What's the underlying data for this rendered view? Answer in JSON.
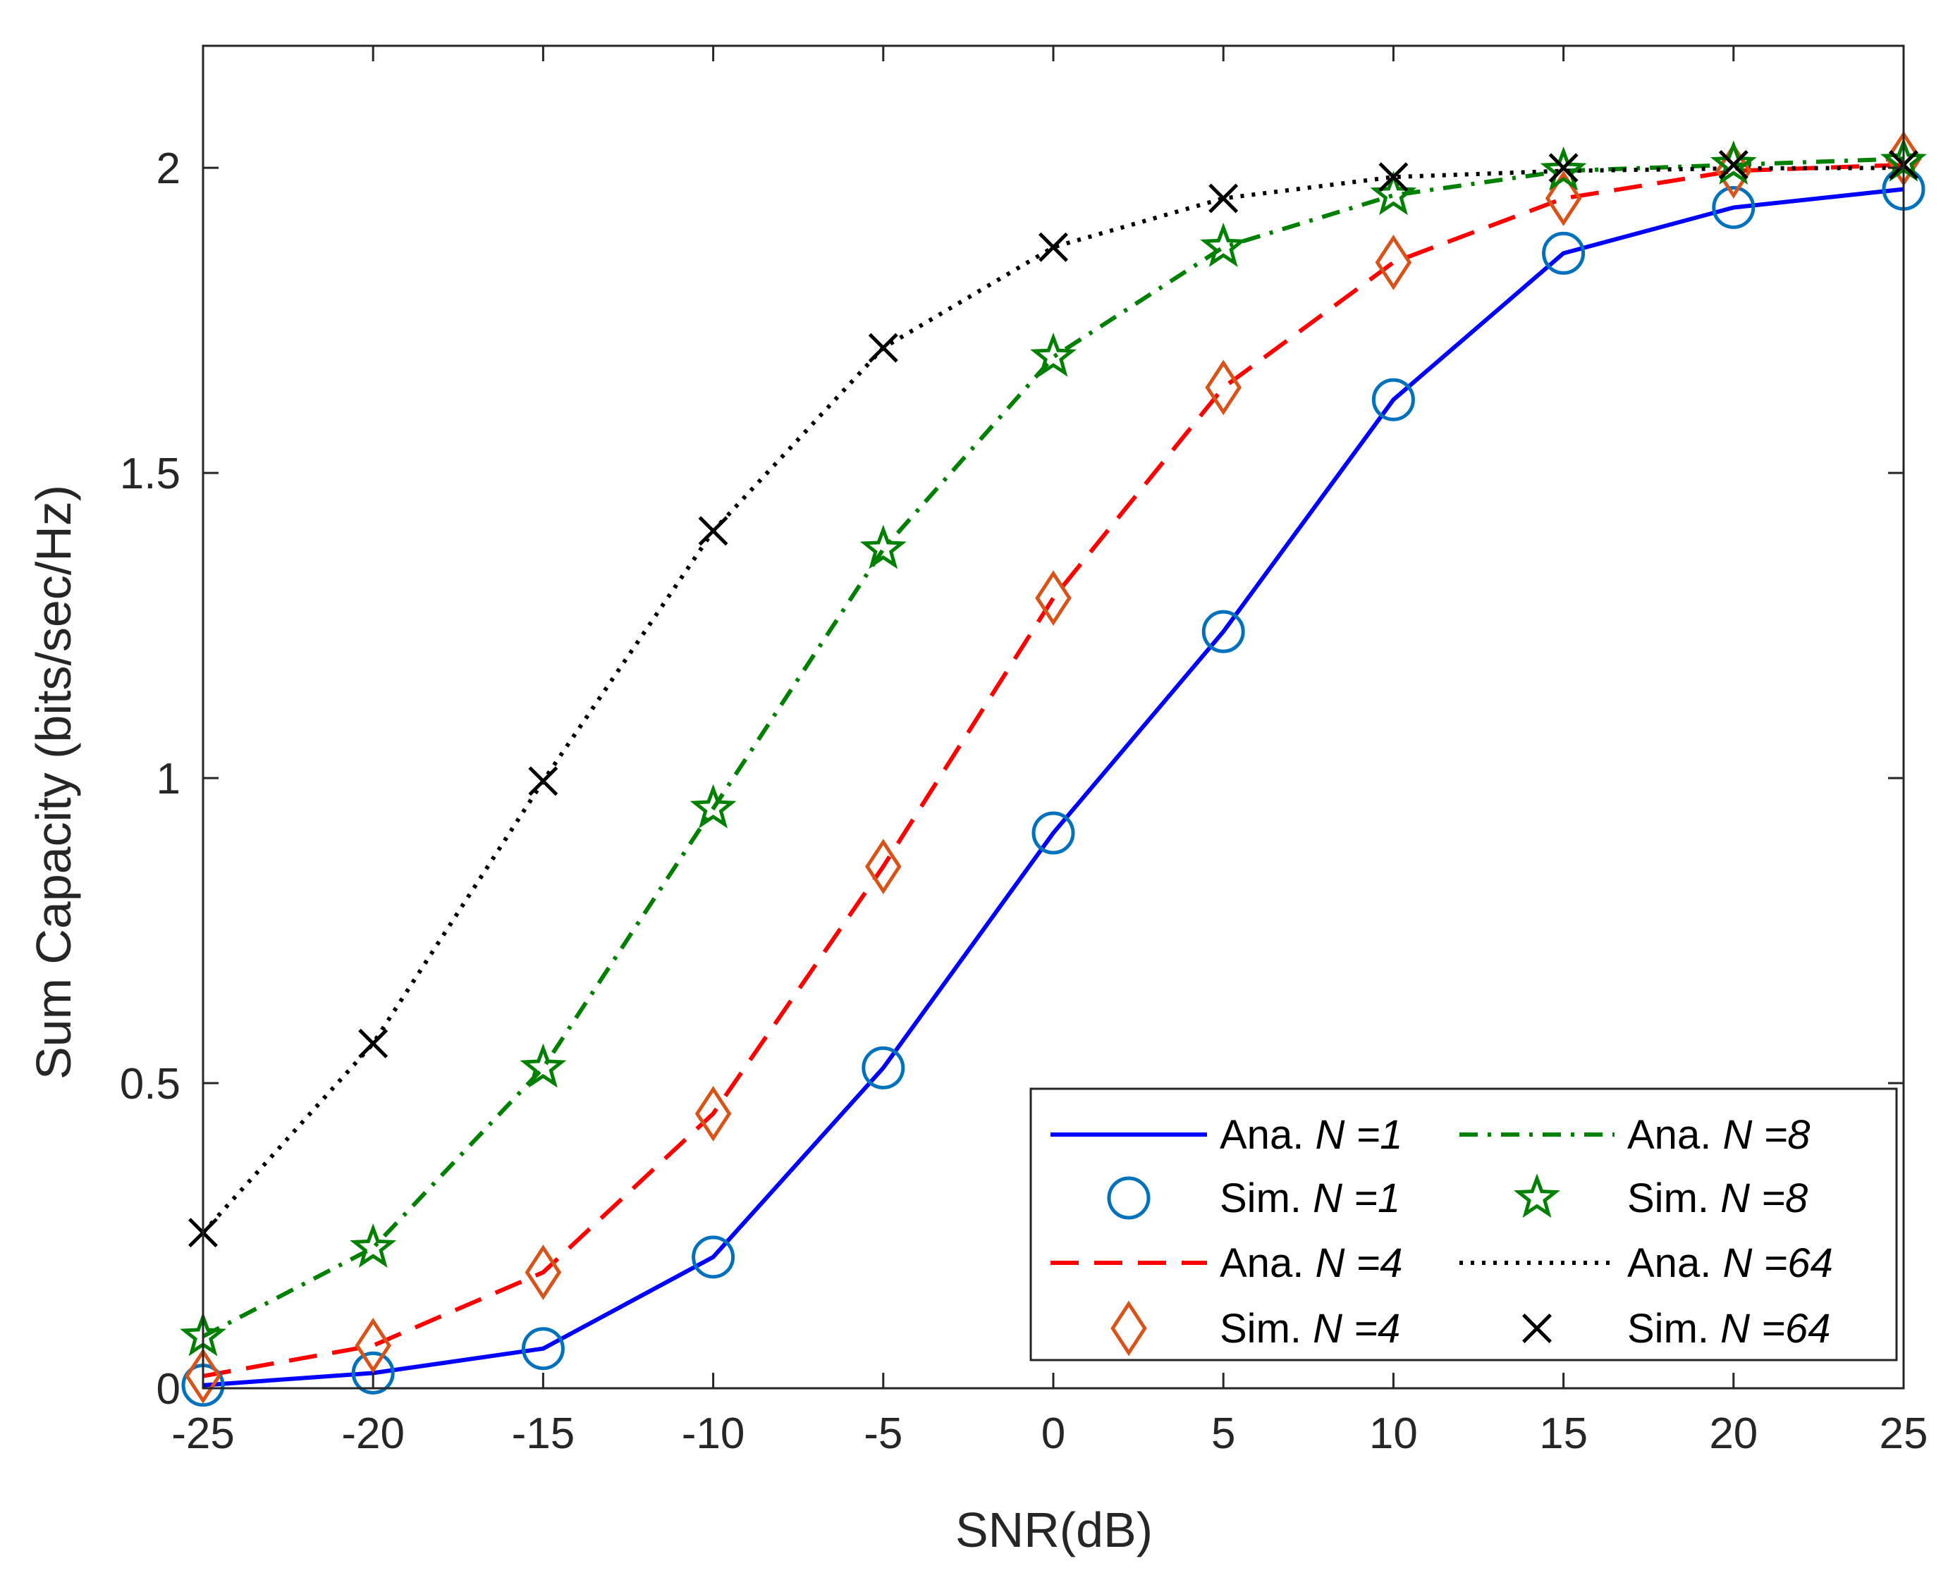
{
  "chart_data": {
    "type": "line",
    "xlabel": "SNR(dB)",
    "ylabel": "Sum Capacity (bits/sec/Hz)",
    "xlim": [
      -25,
      25
    ],
    "ylim": [
      0,
      2.2
    ],
    "xticks": [
      -25,
      -20,
      -15,
      -10,
      -5,
      0,
      5,
      10,
      15,
      20,
      25
    ],
    "xtick_labels": [
      "-25",
      "-20",
      "-15",
      "-10",
      "-5",
      "0",
      "5",
      "10",
      "15",
      "20",
      "25"
    ],
    "yticks": [
      0,
      0.5,
      1,
      1.5,
      2
    ],
    "ytick_labels": [
      "0",
      "0.5",
      "1",
      "1.5",
      "2"
    ],
    "grid": false,
    "legend_position": "bottom-right",
    "x": [
      -25,
      -20,
      -15,
      -10,
      -5,
      0,
      5,
      10,
      15,
      20,
      25
    ],
    "series": [
      {
        "name": "Ana. N =1",
        "label": "Ana. ",
        "n_label": "N =1",
        "kind": "line",
        "style": "solid",
        "color": "#0000ff",
        "values": [
          0.005,
          0.025,
          0.065,
          0.215,
          0.525,
          0.91,
          1.24,
          1.62,
          1.86,
          1.935,
          1.965
        ]
      },
      {
        "name": "Sim. N =1",
        "label": "Sim. ",
        "n_label": "N =1",
        "kind": "marker",
        "marker": "circle",
        "color": "#0072bd",
        "values": [
          0.005,
          0.025,
          0.065,
          0.215,
          0.525,
          0.91,
          1.24,
          1.62,
          1.86,
          1.935,
          1.965
        ]
      },
      {
        "name": "Ana. N =4",
        "label": "Ana. ",
        "n_label": "N =4",
        "kind": "line",
        "style": "dashed",
        "color": "#ff0000",
        "values": [
          0.02,
          0.07,
          0.19,
          0.45,
          0.855,
          1.295,
          1.64,
          1.845,
          1.95,
          1.995,
          2.005
        ]
      },
      {
        "name": "Sim. N =4",
        "label": "Sim. ",
        "n_label": "N =4",
        "kind": "marker",
        "marker": "diamond",
        "color": "#d95319",
        "values": [
          0.02,
          0.07,
          0.19,
          0.45,
          0.855,
          1.295,
          1.64,
          1.845,
          1.95,
          1.995,
          2.015
        ]
      },
      {
        "name": "Ana. N =8",
        "label": "Ana. ",
        "n_label": "N =8",
        "kind": "line",
        "style": "dashdot",
        "color": "#008000",
        "values": [
          0.085,
          0.23,
          0.525,
          0.95,
          1.375,
          1.69,
          1.87,
          1.955,
          1.995,
          2.005,
          2.015
        ]
      },
      {
        "name": "Sim. N =8",
        "label": "Sim. ",
        "n_label": "N =8",
        "kind": "marker",
        "marker": "star",
        "color": "#008000",
        "values": [
          0.085,
          0.23,
          0.525,
          0.95,
          1.375,
          1.69,
          1.87,
          1.955,
          1.995,
          2.005,
          2.01
        ]
      },
      {
        "name": "Ana. N =64",
        "label": "Ana. ",
        "n_label": "N =64",
        "kind": "line",
        "style": "dotted",
        "color": "#000000",
        "values": [
          0.255,
          0.565,
          0.995,
          1.405,
          1.705,
          1.87,
          1.95,
          1.985,
          1.995,
          1.999,
          2.0
        ]
      },
      {
        "name": "Sim. N =64",
        "label": "Sim. ",
        "n_label": "N =64",
        "kind": "marker",
        "marker": "x",
        "color": "#000000",
        "values": [
          0.255,
          0.565,
          0.995,
          1.405,
          1.705,
          1.87,
          1.95,
          1.985,
          2.0,
          2.005,
          2.005
        ]
      }
    ]
  }
}
